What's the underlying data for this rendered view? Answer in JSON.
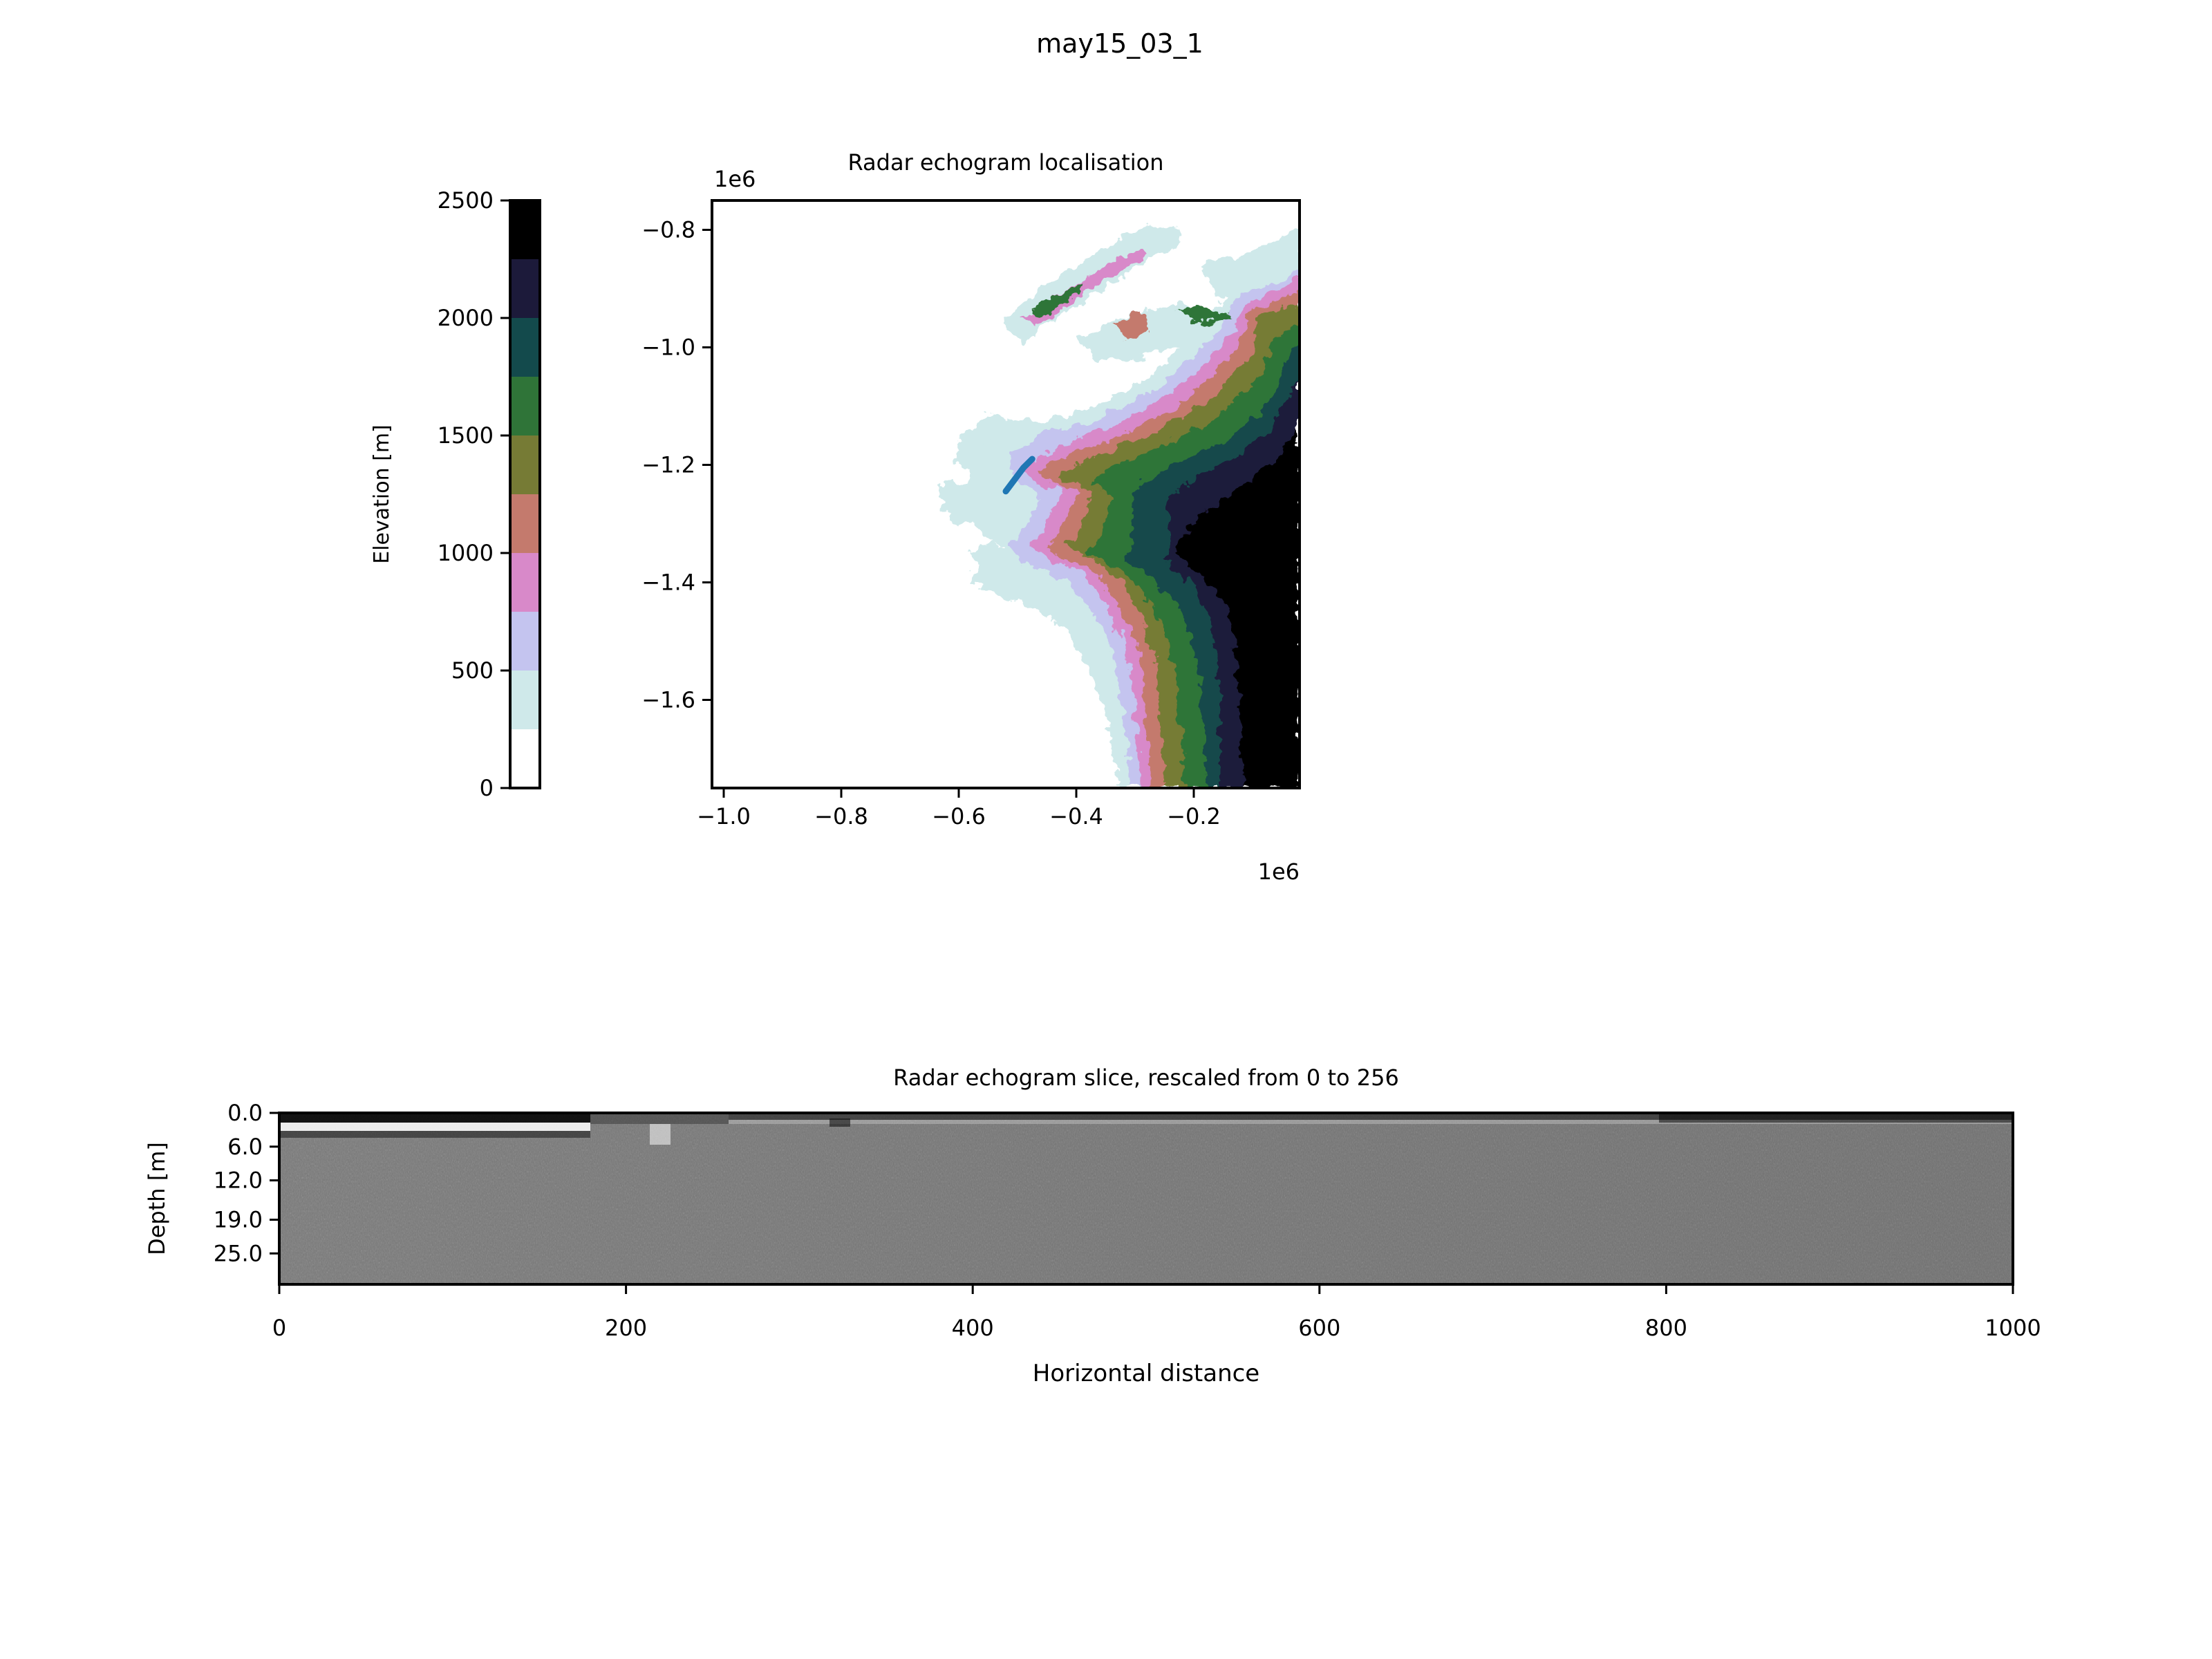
{
  "figure": {
    "suptitle": "may15_03_1"
  },
  "colorbar": {
    "label": "Elevation [m]",
    "ticks": [
      0,
      500,
      1000,
      1500,
      2000,
      2500
    ],
    "range": [
      0,
      2500
    ],
    "levels": [
      {
        "from": 0,
        "to": 250,
        "color": "#ffffff"
      },
      {
        "from": 250,
        "to": 500,
        "color": "#cfe9ea"
      },
      {
        "from": 500,
        "to": 750,
        "color": "#c4c4ef"
      },
      {
        "from": 750,
        "to": 1000,
        "color": "#d889c9"
      },
      {
        "from": 1000,
        "to": 1250,
        "color": "#c47a6d"
      },
      {
        "from": 1250,
        "to": 1500,
        "color": "#767b35"
      },
      {
        "from": 1500,
        "to": 1750,
        "color": "#2f7438"
      },
      {
        "from": 1750,
        "to": 2000,
        "color": "#134a4c"
      },
      {
        "from": 2000,
        "to": 2250,
        "color": "#1c1a3a"
      },
      {
        "from": 2250,
        "to": 2500,
        "color": "#000000"
      }
    ]
  },
  "chart_data": [
    {
      "type": "heatmap",
      "title": "Radar echogram localisation",
      "x_ticks": [
        -1.0,
        -0.8,
        -0.6,
        -0.4,
        -0.2
      ],
      "x_tick_labels": [
        "−1.0",
        "−0.8",
        "−0.6",
        "−0.4",
        "−0.2"
      ],
      "y_ticks": [
        -0.8,
        -1.0,
        -1.2,
        -1.4,
        -1.6
      ],
      "y_tick_labels": [
        "−0.8",
        "−1.0",
        "−1.2",
        "−1.4",
        "−1.6"
      ],
      "x_offset_label": "1e6",
      "y_offset_label": "1e6",
      "xlim": [
        -1.02,
        -0.02
      ],
      "ylim": [
        -1.75,
        -0.75
      ],
      "track": {
        "color": "#1f77b4",
        "x": [
          -0.52,
          -0.505,
          -0.49,
          -0.475
        ],
        "y": [
          -1.245,
          -1.225,
          -1.205,
          -1.19
        ]
      }
    },
    {
      "type": "heatmap",
      "title": "Radar echogram slice, rescaled from 0 to 256",
      "xlabel": "Horizontal distance",
      "ylabel": "Depth [m]",
      "x_ticks": [
        0,
        200,
        400,
        600,
        800,
        1000
      ],
      "x_tick_labels": [
        "0",
        "200",
        "400",
        "600",
        "800",
        "1000"
      ],
      "y_ticks": [
        0.0,
        6.0,
        12.0,
        19.0,
        25.0
      ],
      "y_tick_labels": [
        "0.0",
        "6.0",
        "12.0",
        "19.0",
        "25.0"
      ],
      "xlim": [
        0,
        1000
      ],
      "ylim": [
        30.5,
        0
      ]
    }
  ]
}
